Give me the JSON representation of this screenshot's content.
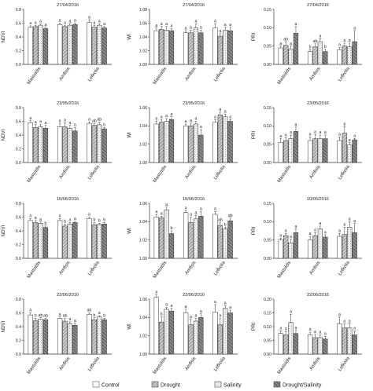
{
  "legend": {
    "items": [
      {
        "label": "Control",
        "fill": "#ffffff"
      },
      {
        "label": "Drought",
        "fill": "#c4c4c4"
      },
      {
        "label": "Salinity",
        "fill": "#eaeaea"
      },
      {
        "label": "Drought/Salinity",
        "fill": "#8c8c8c"
      }
    ]
  },
  "chart_data": [
    {
      "type": "bar",
      "title": "27/04/2016",
      "ylabel": "NDVI",
      "categories": [
        "Mastoidis",
        "Amfisis",
        "Lefkolia"
      ],
      "ylim": [
        0,
        0.8
      ],
      "yticks": [
        "0.0",
        "0.2",
        "0.4",
        "0.6",
        "0.8"
      ],
      "series_values": [
        [
          0.54,
          0.58,
          0.61
        ],
        [
          0.55,
          0.55,
          0.54
        ],
        [
          0.57,
          0.57,
          0.57
        ],
        [
          0.52,
          0.58,
          0.53
        ]
      ],
      "errors": [
        [
          0.02,
          0.02,
          0.04
        ],
        [
          0.02,
          0.02,
          0.03
        ],
        [
          0.02,
          0.02,
          0.02
        ],
        [
          0.02,
          0.02,
          0.02
        ]
      ],
      "letters": [
        [
          "a",
          "a",
          "a"
        ],
        [
          "a",
          "a",
          "a"
        ],
        [
          "a",
          "a",
          "a"
        ],
        [
          "a",
          "a",
          "a"
        ]
      ]
    },
    {
      "type": "bar",
      "title": "27/04/2016",
      "ylabel": "WI",
      "categories": [
        "Mastoidis",
        "Amfisis",
        "Lefkolia"
      ],
      "ylim": [
        1.0,
        1.08
      ],
      "yticks": [
        "1.00",
        "1.02",
        "1.04",
        "1.06",
        "1.08"
      ],
      "series_values": [
        [
          1.049,
          1.046,
          1.053
        ],
        [
          1.051,
          1.046,
          1.041
        ],
        [
          1.05,
          1.053,
          1.05
        ],
        [
          1.049,
          1.046,
          1.049
        ]
      ],
      "errors": [
        [
          0.004,
          0.003,
          0.006
        ],
        [
          0.004,
          0.004,
          0.004
        ],
        [
          0.005,
          0.006,
          0.004
        ],
        [
          0.003,
          0.004,
          0.005
        ]
      ],
      "letters": [
        [
          "a",
          "a",
          "a"
        ],
        [
          "a",
          "a",
          "a"
        ],
        [
          "a",
          "a",
          "a"
        ],
        [
          "a",
          "a",
          "a"
        ]
      ]
    },
    {
      "type": "bar",
      "title": "27/04/2016",
      "ylabel": "PRI",
      "categories": [
        "Mastoidis",
        "Amfisis",
        "Lefkolia"
      ],
      "ylim": [
        0,
        0.15
      ],
      "yticks": [
        "0.00",
        "0.05",
        "0.10",
        "0.15"
      ],
      "series_values": [
        [
          0.045,
          0.035,
          0.04
        ],
        [
          0.052,
          0.048,
          0.05
        ],
        [
          0.042,
          0.062,
          0.048
        ],
        [
          0.085,
          0.035,
          0.062
        ]
      ],
      "errors": [
        [
          0.005,
          0.005,
          0.006
        ],
        [
          0.01,
          0.008,
          0.008
        ],
        [
          0.008,
          0.008,
          0.01
        ],
        [
          0.018,
          0.006,
          0.03
        ]
      ],
      "letters": [
        [
          "a",
          "b",
          "a"
        ],
        [
          "ab",
          "ab",
          "a"
        ],
        [
          "a",
          "a",
          "a"
        ],
        [
          "a",
          "b",
          "a"
        ]
      ]
    },
    {
      "type": "bar",
      "title": "23/05/2016",
      "ylabel": "NDVI",
      "categories": [
        "Mastoidis",
        "Amfisis",
        "Lefkolia"
      ],
      "ylim": [
        0,
        0.8
      ],
      "yticks": [
        "0.0",
        "0.2",
        "0.4",
        "0.6",
        "0.8"
      ],
      "series_values": [
        [
          0.58,
          0.52,
          0.57
        ],
        [
          0.51,
          0.52,
          0.54
        ],
        [
          0.52,
          0.5,
          0.55
        ],
        [
          0.5,
          0.46,
          0.49
        ]
      ],
      "errors": [
        [
          0.03,
          0.05,
          0.02
        ],
        [
          0.04,
          0.06,
          0.03
        ],
        [
          0.04,
          0.04,
          0.04
        ],
        [
          0.04,
          0.05,
          0.02
        ]
      ],
      "letters": [
        [
          "a",
          "a",
          "a"
        ],
        [
          "a",
          "a",
          "ab"
        ],
        [
          "a",
          "a",
          "ab"
        ],
        [
          "a",
          "a",
          "b"
        ]
      ]
    },
    {
      "type": "bar",
      "title": "23/05/2016",
      "ylabel": "WI",
      "categories": [
        "Mastoidis",
        "Amfisis",
        "Lefkolia"
      ],
      "ylim": [
        1.0,
        1.06
      ],
      "yticks": [
        "1.00",
        "1.02",
        "1.04",
        "1.06"
      ],
      "series_values": [
        [
          1.042,
          1.04,
          1.044
        ],
        [
          1.044,
          1.04,
          1.052
        ],
        [
          1.045,
          1.042,
          1.05
        ],
        [
          1.047,
          1.03,
          1.045
        ]
      ],
      "errors": [
        [
          0.003,
          0.002,
          0.003
        ],
        [
          0.003,
          0.003,
          0.003
        ],
        [
          0.003,
          0.003,
          0.003
        ],
        [
          0.003,
          0.006,
          0.002
        ]
      ],
      "letters": [
        [
          "a",
          "a",
          "a"
        ],
        [
          "a",
          "a",
          "a"
        ],
        [
          "a",
          "a",
          "a"
        ],
        [
          "a",
          "a",
          "a"
        ]
      ]
    },
    {
      "type": "bar",
      "title": "23/05/2016",
      "ylabel": "PRI",
      "categories": [
        "Mastoidis",
        "Amfisis",
        "Lefkolia"
      ],
      "ylim": [
        0,
        0.15
      ],
      "yticks": [
        "0.00",
        "0.05",
        "0.10",
        "0.15"
      ],
      "series_values": [
        [
          0.055,
          0.06,
          0.06
        ],
        [
          0.06,
          0.065,
          0.08
        ],
        [
          0.065,
          0.065,
          0.048
        ],
        [
          0.085,
          0.065,
          0.062
        ]
      ],
      "errors": [
        [
          0.01,
          0.01,
          0.01
        ],
        [
          0.008,
          0.012,
          0.018
        ],
        [
          0.01,
          0.01,
          0.006
        ],
        [
          0.012,
          0.01,
          0.004
        ]
      ],
      "letters": [
        [
          "a",
          "a",
          "a"
        ],
        [
          "a",
          "a",
          "a"
        ],
        [
          "a",
          "a",
          "a"
        ],
        [
          "a",
          "a",
          "a"
        ]
      ]
    },
    {
      "type": "bar",
      "title": "10/06/2016",
      "ylabel": "NDVI",
      "categories": [
        "Mastoidis",
        "Amfisis",
        "Lefkolia"
      ],
      "ylim": [
        0,
        0.8
      ],
      "yticks": [
        "0.0",
        "0.2",
        "0.4",
        "0.6",
        "0.8"
      ],
      "series_values": [
        [
          0.55,
          0.55,
          0.58
        ],
        [
          0.52,
          0.47,
          0.49
        ],
        [
          0.51,
          0.5,
          0.49
        ],
        [
          0.45,
          0.52,
          0.5
        ]
      ],
      "errors": [
        [
          0.03,
          0.03,
          0.02
        ],
        [
          0.03,
          0.03,
          0.03
        ],
        [
          0.02,
          0.02,
          0.02
        ],
        [
          0.02,
          0.02,
          0.02
        ]
      ],
      "letters": [
        [
          "a",
          "a",
          "a"
        ],
        [
          "a",
          "b",
          "b"
        ],
        [
          "a",
          "a",
          "b"
        ],
        [
          "b",
          "a",
          "b"
        ]
      ]
    },
    {
      "type": "bar",
      "title": "10/06/2016",
      "ylabel": "WI",
      "categories": [
        "Mastoidis",
        "Amfisis",
        "Lefkolia"
      ],
      "ylim": [
        1.0,
        1.06
      ],
      "yticks": [
        "1.00",
        "1.02",
        "1.04",
        "1.06"
      ],
      "series_values": [
        [
          1.045,
          1.05,
          1.048
        ],
        [
          1.044,
          1.039,
          1.036
        ],
        [
          1.053,
          1.043,
          1.032
        ],
        [
          1.027,
          1.046,
          1.041
        ]
      ],
      "errors": [
        [
          0.003,
          0.002,
          0.003
        ],
        [
          0.002,
          0.006,
          0.003
        ],
        [
          0.003,
          0.004,
          0.002
        ],
        [
          0.003,
          0.005,
          0.003
        ]
      ],
      "letters": [
        [
          "a",
          "a",
          "a"
        ],
        [
          "a",
          "a",
          "ab"
        ],
        [
          "a",
          "a",
          "b"
        ],
        [
          "b",
          "a",
          "ab"
        ]
      ]
    },
    {
      "type": "bar",
      "title": "10/06/2016",
      "ylabel": "PRI",
      "categories": [
        "Mastoidis",
        "Amfisis",
        "Lefkolia"
      ],
      "ylim": [
        0,
        0.15
      ],
      "yticks": [
        "0.00",
        "0.05",
        "0.10",
        "0.15"
      ],
      "series_values": [
        [
          0.05,
          0.05,
          0.06
        ],
        [
          0.062,
          0.062,
          0.065
        ],
        [
          0.042,
          0.08,
          0.085
        ],
        [
          0.07,
          0.058,
          0.07
        ]
      ],
      "errors": [
        [
          0.005,
          0.01,
          0.008
        ],
        [
          0.006,
          0.008,
          0.02
        ],
        [
          0.01,
          0.008,
          0.015
        ],
        [
          0.01,
          0.006,
          0.025
        ]
      ],
      "letters": [
        [
          "a",
          "a",
          "a"
        ],
        [
          "a",
          "a",
          "a"
        ],
        [
          "a",
          "a",
          "a"
        ],
        [
          "a",
          "a",
          "a"
        ]
      ]
    },
    {
      "type": "bar",
      "title": "22/06/2016",
      "ylabel": "NDVI",
      "categories": [
        "Mastoidis",
        "Amfisis",
        "Lefkolia"
      ],
      "ylim": [
        0,
        0.8
      ],
      "yticks": [
        "0.0",
        "0.2",
        "0.4",
        "0.6",
        "0.8"
      ],
      "series_values": [
        [
          0.57,
          0.52,
          0.58
        ],
        [
          0.49,
          0.48,
          0.5
        ],
        [
          0.51,
          0.44,
          0.54
        ],
        [
          0.5,
          0.42,
          0.5
        ]
      ],
      "errors": [
        [
          0.03,
          0.02,
          0.02
        ],
        [
          0.03,
          0.04,
          0.03
        ],
        [
          0.02,
          0.03,
          0.02
        ],
        [
          0.02,
          0.03,
          0.02
        ]
      ],
      "letters": [
        [
          "a",
          "a",
          "ab"
        ],
        [
          "b",
          "ab",
          "b"
        ],
        [
          "ab",
          "a",
          "a"
        ],
        [
          "ab",
          "a",
          "b"
        ]
      ]
    },
    {
      "type": "bar",
      "title": "22/06/2016",
      "ylabel": "WI",
      "categories": [
        "Mastoidis",
        "Amfisis",
        "Lefkolia"
      ],
      "ylim": [
        1.0,
        1.06
      ],
      "yticks": [
        "1.00",
        "1.02",
        "1.04",
        "1.06"
      ],
      "series_values": [
        [
          1.062,
          1.045,
          1.046
        ],
        [
          1.035,
          1.032,
          1.032
        ],
        [
          1.049,
          1.036,
          1.05
        ],
        [
          1.047,
          1.04,
          1.045
        ]
      ],
      "errors": [
        [
          0.003,
          0.004,
          0.008
        ],
        [
          0.006,
          0.006,
          0.007
        ],
        [
          0.002,
          0.003,
          0.003
        ],
        [
          0.003,
          0.004,
          0.003
        ]
      ],
      "letters": [
        [
          "a",
          "a",
          "a"
        ],
        [
          "b",
          "a",
          "a"
        ],
        [
          "a",
          "a",
          "a"
        ],
        [
          "a",
          "a",
          "a"
        ]
      ]
    },
    {
      "type": "bar",
      "title": "22/06/2016",
      "ylabel": "PRI",
      "categories": [
        "Mastoidis",
        "Amfisis",
        "Lefkolia"
      ],
      "ylim": [
        0,
        0.2
      ],
      "yticks": [
        "0.00",
        "0.05",
        "0.10",
        "0.15",
        "0.20"
      ],
      "series_values": [
        [
          0.075,
          0.07,
          0.11
        ],
        [
          0.07,
          0.06,
          0.095
        ],
        [
          0.115,
          0.06,
          0.095
        ],
        [
          0.075,
          0.055,
          0.07
        ]
      ],
      "errors": [
        [
          0.01,
          0.01,
          0.025
        ],
        [
          0.012,
          0.012,
          0.015
        ],
        [
          0.03,
          0.01,
          0.015
        ],
        [
          0.012,
          0.01,
          0.015
        ]
      ],
      "letters": [
        [
          "a",
          "a",
          "a"
        ],
        [
          "a",
          "a",
          "a"
        ],
        [
          "a",
          "a",
          "a"
        ],
        [
          "a",
          "a",
          "a"
        ]
      ]
    }
  ]
}
